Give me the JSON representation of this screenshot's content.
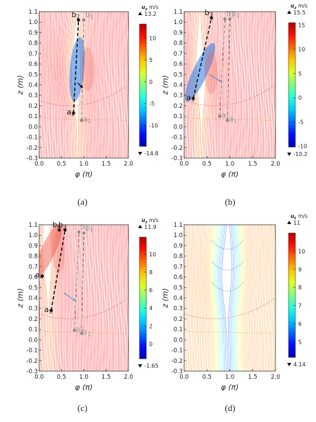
{
  "chart_data": [
    {
      "type": "contour",
      "panel_label": "(a)",
      "xlabel": "φ (π)",
      "ylabel": "z (m)",
      "xlim": [
        0.0,
        2.0
      ],
      "ylim": [
        -0.3,
        1.1
      ],
      "xticks": [
        "0.0",
        "0.5",
        "1.0",
        "1.5",
        "2.0"
      ],
      "yticks": [
        "-0.3",
        "-0.2",
        "-0.1",
        "0.0",
        "0.1",
        "0.2",
        "0.3",
        "0.4",
        "0.5",
        "0.6",
        "0.7",
        "0.8",
        "0.9",
        "1.0",
        "1.1"
      ],
      "colorbar": {
        "variable": "u",
        "subscript": "z",
        "unit": "m/s",
        "max_label": "13.2",
        "min_label": "-14.8",
        "ticks": [
          "10",
          "5",
          "0",
          "-5",
          "-10"
        ],
        "tick_values": [
          10,
          5,
          0,
          -5,
          -10
        ],
        "vmin": -14.8,
        "vmax": 13.2,
        "scale": "jet"
      },
      "points": [
        {
          "label": "a",
          "subscript": "2",
          "x": 0.77,
          "y": 0.13,
          "style": "solid"
        },
        {
          "label": "b",
          "subscript": "2",
          "x": 0.88,
          "y": 1.02,
          "style": "solid"
        },
        {
          "label": "a",
          "subscript": "1",
          "x": 0.95,
          "y": 0.06,
          "style": "faint"
        },
        {
          "label": "b",
          "subscript": "1",
          "x": 1.0,
          "y": 1.02,
          "style": "faint"
        }
      ],
      "lines": [
        {
          "from": [
            0.77,
            0.13
          ],
          "to": [
            0.88,
            1.02
          ],
          "style": "dashed",
          "color": "#111111"
        },
        {
          "from": [
            0.95,
            0.06
          ],
          "to": [
            1.0,
            1.02
          ],
          "style": "dashed",
          "color": "#8a8a8a"
        }
      ],
      "arrows": [
        {
          "from": [
            0.86,
            0.42
          ],
          "to": [
            0.98,
            0.37
          ],
          "color": "#111111"
        }
      ],
      "flow_feature": {
        "center_x": 0.85,
        "center_z": 0.55,
        "sign": -1
      }
    },
    {
      "type": "contour",
      "panel_label": "(b)",
      "xlabel": "φ (π)",
      "ylabel": "z (m)",
      "xlim": [
        0.0,
        2.0
      ],
      "ylim": [
        -0.3,
        1.1
      ],
      "xticks": [
        "0.0",
        "0.5",
        "1.0",
        "1.5",
        "2.0"
      ],
      "yticks": [
        "-0.3",
        "-0.2",
        "-0.1",
        "0.0",
        "0.1",
        "0.2",
        "0.3",
        "0.4",
        "0.5",
        "0.6",
        "0.7",
        "0.8",
        "0.9",
        "1.0",
        "1.1"
      ],
      "colorbar": {
        "variable": "u",
        "subscript": "z",
        "unit": "m/s",
        "max_label": "15.5",
        "min_label": "-10.2",
        "ticks": [
          "15",
          "10",
          "5",
          "0",
          "-5",
          "-10"
        ],
        "tick_values": [
          15,
          10,
          5,
          0,
          -5,
          -10
        ],
        "vmin": -10.2,
        "vmax": 15.5,
        "scale": "jet"
      },
      "points": [
        {
          "label": "a",
          "subscript": "3",
          "x": 0.2,
          "y": 0.27,
          "style": "solid"
        },
        {
          "label": "b",
          "subscript": "3",
          "x": 0.6,
          "y": 1.04,
          "style": "solid"
        },
        {
          "label": "a",
          "subscript": "2",
          "x": 0.78,
          "y": 0.1,
          "style": "faint"
        },
        {
          "label": "b",
          "subscript": "2",
          "x": 0.89,
          "y": 1.03,
          "style": "faint"
        },
        {
          "label": "a",
          "subscript": "1",
          "x": 0.95,
          "y": 0.06,
          "style": "faint"
        },
        {
          "label": "b",
          "subscript": "1",
          "x": 1.0,
          "y": 1.03,
          "style": "faint"
        }
      ],
      "lines": [
        {
          "from": [
            0.2,
            0.27
          ],
          "to": [
            0.6,
            1.04
          ],
          "style": "dashed",
          "color": "#111111"
        },
        {
          "from": [
            0.78,
            0.1
          ],
          "to": [
            0.89,
            1.03
          ],
          "style": "dashed",
          "color": "#8a8a8a"
        },
        {
          "from": [
            0.95,
            0.06
          ],
          "to": [
            1.0,
            1.03
          ],
          "style": "dashed",
          "color": "#8a8a8a"
        }
      ],
      "arrows": [
        {
          "from": [
            0.55,
            0.5
          ],
          "to": [
            0.82,
            0.43
          ],
          "color": "#6d9ec9"
        }
      ],
      "flow_feature": {
        "center_x": 0.35,
        "center_z": 0.52,
        "sign": -1
      }
    },
    {
      "type": "contour",
      "panel_label": "(c)",
      "xlabel": "φ (π)",
      "ylabel": "z (m)",
      "xlim": [
        0.0,
        2.0
      ],
      "ylim": [
        -0.3,
        1.1
      ],
      "xticks": [
        "0.0",
        "0.5",
        "1.0",
        "1.5",
        "2.0"
      ],
      "yticks": [
        "-0.3",
        "-0.2",
        "-0.1",
        "0.0",
        "0.1",
        "0.2",
        "0.3",
        "0.4",
        "0.5",
        "0.6",
        "0.7",
        "0.8",
        "0.9",
        "1.0",
        "1.1"
      ],
      "colorbar": {
        "variable": "u",
        "subscript": "z",
        "unit": "m/s",
        "max_label": "11.9",
        "min_label": "-1.65",
        "ticks": [
          "10",
          "8",
          "6",
          "4",
          "2",
          "0"
        ],
        "tick_values": [
          10,
          8,
          6,
          4,
          2,
          0
        ],
        "vmin": -1.65,
        "vmax": 11.9,
        "scale": "jet"
      },
      "points": [
        {
          "label": "a",
          "subscript": "4",
          "x": 0.07,
          "y": 0.61,
          "style": "solid"
        },
        {
          "label": "b",
          "subscript": "4",
          "x": 0.45,
          "y": 1.05,
          "style": "solid"
        },
        {
          "label": "a",
          "subscript": "3",
          "x": 0.27,
          "y": 0.28,
          "style": "solid"
        },
        {
          "label": "b",
          "subscript": "3",
          "x": 0.58,
          "y": 1.05,
          "style": "solid"
        },
        {
          "label": "a",
          "subscript": "2",
          "x": 0.79,
          "y": 0.09,
          "style": "faint"
        },
        {
          "label": "b",
          "subscript": "2",
          "x": 0.89,
          "y": 1.03,
          "style": "faint"
        },
        {
          "label": "a",
          "subscript": "1",
          "x": 0.95,
          "y": 0.06,
          "style": "faint"
        },
        {
          "label": "b",
          "subscript": "1",
          "x": 1.0,
          "y": 1.02,
          "style": "faint"
        }
      ],
      "lines": [
        {
          "from": [
            0.27,
            0.28
          ],
          "to": [
            0.58,
            1.05
          ],
          "style": "dashed",
          "color": "#111111"
        },
        {
          "from": [
            0.79,
            0.09
          ],
          "to": [
            0.89,
            1.03
          ],
          "style": "dashed",
          "color": "#8a8a8a"
        },
        {
          "from": [
            0.95,
            0.06
          ],
          "to": [
            1.0,
            1.02
          ],
          "style": "dashed",
          "color": "#8a8a8a"
        }
      ],
      "arrows": [
        {
          "from": [
            0.55,
            0.45
          ],
          "to": [
            0.82,
            0.37
          ],
          "color": "#6d9ec9"
        }
      ],
      "flow_feature": {
        "center_x": 0.2,
        "center_z": 0.85,
        "sign": 1
      }
    },
    {
      "type": "contour",
      "panel_label": "(d)",
      "xlabel": "φ (π)",
      "ylabel": "z (m)",
      "xlim": [
        0.0,
        2.0
      ],
      "ylim": [
        -0.3,
        1.1
      ],
      "xticks": [
        "0.0",
        "0.5",
        "1.0",
        "1.5",
        "2.0"
      ],
      "yticks": [
        "-0.3",
        "-0.2",
        "-0.1",
        "0.0",
        "0.1",
        "0.2",
        "0.3",
        "0.4",
        "0.5",
        "0.6",
        "0.7",
        "0.8",
        "0.9",
        "1.0",
        "1.1"
      ],
      "colorbar": {
        "variable": "u",
        "subscript": "t",
        "unit": "m/s",
        "max_label": "11",
        "min_label": "4.14",
        "ticks": [
          "10",
          "9",
          "8",
          "7",
          "6",
          "5"
        ],
        "tick_values": [
          10,
          9,
          8,
          7,
          6,
          5
        ],
        "vmin": 4.14,
        "vmax": 11,
        "scale": "jet"
      },
      "points": [],
      "lines": [],
      "arrows": [],
      "flow_feature": {
        "center_x": 0.95,
        "center_z": 0.65,
        "sign": -1
      }
    }
  ]
}
